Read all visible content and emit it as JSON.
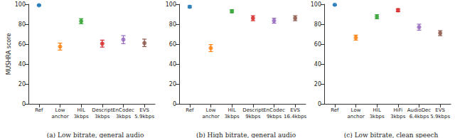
{
  "chart_data": [
    {
      "type": "scatter",
      "title": "(a) Low bitrate, general audio",
      "ylabel": "MUSHRA score",
      "categories": [
        "Ref",
        "Low\nanchor",
        "HIL\n3kbps",
        "Descript\n3kbps",
        "EnCodec\n3kbps",
        "EVS\n5.9kbps"
      ],
      "values": [
        99,
        57.5,
        83,
        60.5,
        64.5,
        61
      ],
      "error_low": [
        98.5,
        54,
        80.5,
        57,
        60.5,
        57.5
      ],
      "error_high": [
        99.5,
        61,
        85.5,
        64,
        68.5,
        65
      ],
      "colors": [
        "#1f77b4",
        "#ff7f0e",
        "#2ca02c",
        "#d62728",
        "#9467bd",
        "#8c564b"
      ],
      "marker": "circle",
      "ylim": [
        0,
        100
      ],
      "yticks": [
        0,
        20,
        40,
        60,
        80,
        100
      ],
      "grid": false
    },
    {
      "type": "scatter",
      "title": "(b) High bitrate, general audio",
      "categories": [
        "Ref",
        "Low\nanchor",
        "HIL\n3kbps",
        "Descript\n9kbps",
        "EnCodec\n9kbps",
        "EVS\n16.4kbps"
      ],
      "values": [
        97.5,
        56,
        93,
        86,
        83.5,
        86
      ],
      "error_low": [
        96.5,
        52.5,
        91.5,
        83.5,
        81,
        83.5
      ],
      "error_high": [
        98.5,
        59.5,
        94.5,
        88.5,
        86,
        88.5
      ],
      "colors": [
        "#1f77b4",
        "#ff7f0e",
        "#2ca02c",
        "#d62728",
        "#9467bd",
        "#8c564b"
      ],
      "marker": "circle",
      "ylim": [
        0,
        100
      ],
      "yticks": [
        0,
        20,
        40,
        60,
        80,
        100
      ],
      "grid": false
    },
    {
      "type": "scatter",
      "title": "(c) Low bitrate, clean speech",
      "categories": [
        "Ref",
        "Low\nanchor",
        "HIL\n3kbps",
        "HiFi\n3kbps",
        "AudioDec\n6.4kbps",
        "EVS\n5.9kbps"
      ],
      "values": [
        99.5,
        66.5,
        87.5,
        94,
        77,
        71
      ],
      "error_low": [
        99,
        64,
        85.5,
        92.5,
        74,
        68.5
      ],
      "error_high": [
        100,
        69,
        89.5,
        95.5,
        80,
        73.5
      ],
      "colors": [
        "#1f77b4",
        "#ff7f0e",
        "#2ca02c",
        "#d62728",
        "#9467bd",
        "#8c564b"
      ],
      "marker": "circle",
      "ylim": [
        0,
        100
      ],
      "yticks": [
        0,
        20,
        40,
        60,
        80,
        100
      ],
      "grid": false
    }
  ]
}
